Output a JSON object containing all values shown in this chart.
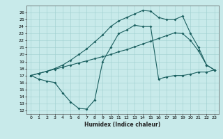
{
  "xlabel": "Humidex (Indice chaleur)",
  "x_ticks": [
    0,
    1,
    2,
    3,
    4,
    5,
    6,
    7,
    8,
    9,
    10,
    11,
    12,
    13,
    14,
    15,
    16,
    17,
    18,
    19,
    20,
    21,
    22,
    23
  ],
  "x_tick_labels": [
    "0",
    "1",
    "2",
    "3",
    "4",
    "5",
    "6",
    "7",
    "8",
    "9",
    "10",
    "11",
    "12",
    "13",
    "14",
    "15",
    "16",
    "17",
    "18",
    "19",
    "20",
    "21",
    "22",
    "23"
  ],
  "ylim": [
    11.5,
    27
  ],
  "xlim": [
    -0.5,
    23.5
  ],
  "y_ticks": [
    12,
    13,
    14,
    15,
    16,
    17,
    18,
    19,
    20,
    21,
    22,
    23,
    24,
    25,
    26
  ],
  "background_color": "#c8eaea",
  "grid_color": "#9ecece",
  "line_color": "#1a5f5f",
  "line1_x": [
    0,
    1,
    2,
    3,
    4,
    5,
    6,
    7,
    8,
    9,
    10,
    11,
    12,
    13,
    14,
    15,
    16,
    17,
    18,
    19,
    20,
    21,
    22,
    23
  ],
  "line1_y": [
    17.0,
    16.5,
    16.2,
    16.0,
    14.5,
    13.2,
    12.3,
    12.2,
    13.5,
    19.0,
    21.0,
    23.0,
    23.5,
    24.2,
    24.0,
    24.0,
    16.5,
    16.8,
    17.0,
    17.0,
    17.2,
    17.5,
    17.5,
    17.8
  ],
  "line2_x": [
    0,
    1,
    2,
    3,
    4,
    5,
    6,
    7,
    8,
    9,
    10,
    11,
    12,
    13,
    14,
    15,
    16,
    17,
    18,
    19,
    20,
    21,
    22,
    23
  ],
  "line2_y": [
    17.0,
    17.3,
    17.6,
    17.9,
    18.2,
    18.5,
    18.8,
    19.1,
    19.4,
    19.7,
    20.0,
    20.4,
    20.7,
    21.1,
    21.5,
    21.9,
    22.3,
    22.7,
    23.1,
    23.0,
    22.0,
    20.5,
    18.5,
    17.8
  ],
  "line3_x": [
    0,
    1,
    2,
    3,
    4,
    5,
    6,
    7,
    8,
    9,
    10,
    11,
    12,
    13,
    14,
    15,
    16,
    17,
    18,
    19,
    20,
    21,
    22,
    23
  ],
  "line3_y": [
    17.0,
    17.3,
    17.6,
    18.0,
    18.5,
    19.2,
    20.0,
    20.8,
    21.8,
    22.8,
    24.0,
    24.8,
    25.3,
    25.8,
    26.3,
    26.2,
    25.3,
    25.0,
    25.0,
    25.5,
    23.0,
    21.0,
    18.5,
    17.8
  ]
}
